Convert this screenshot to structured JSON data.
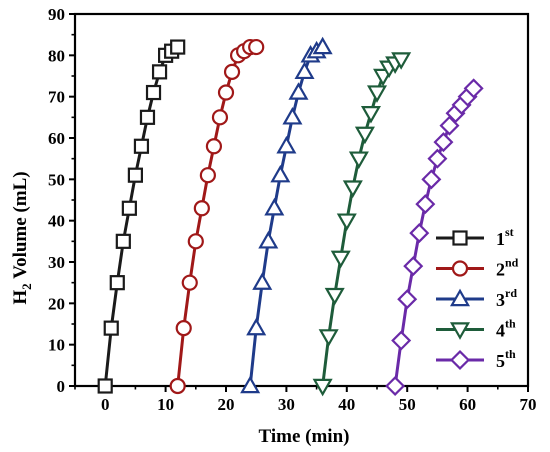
{
  "chart_data": {
    "type": "line",
    "xlabel": "Time (min)",
    "ylabel": {
      "base": "H",
      "subscript": "2",
      "rest": " Volume (mL)"
    },
    "xlim": [
      -5,
      70
    ],
    "ylim": [
      0,
      90
    ],
    "xticks": [
      0,
      10,
      20,
      30,
      40,
      50,
      60,
      70
    ],
    "yticks": [
      0,
      10,
      20,
      30,
      40,
      50,
      60,
      70,
      80,
      90
    ],
    "grid": false,
    "legend_position": "right",
    "series": [
      {
        "name": "1st",
        "label_main": "1",
        "label_sup": "st",
        "marker": "square",
        "color": "#1a1a1a",
        "x": [
          0,
          1,
          2,
          3,
          4,
          5,
          6,
          7,
          8,
          9,
          10,
          11,
          12
        ],
        "y": [
          0,
          14,
          25,
          35,
          43,
          51,
          58,
          65,
          71,
          76,
          80,
          81,
          82
        ]
      },
      {
        "name": "2nd",
        "label_main": "2",
        "label_sup": "nd",
        "marker": "circle",
        "color": "#a01818",
        "x": [
          12,
          13,
          14,
          15,
          16,
          17,
          18,
          19,
          20,
          21,
          22,
          23,
          24,
          25
        ],
        "y": [
          0,
          14,
          25,
          35,
          43,
          51,
          58,
          65,
          71,
          76,
          80,
          81,
          82,
          82
        ]
      },
      {
        "name": "3rd",
        "label_main": "3",
        "label_sup": "rd",
        "marker": "triangle-up",
        "color": "#1f3b8a",
        "x": [
          24,
          25,
          26,
          27,
          28,
          29,
          30,
          31,
          32,
          33,
          34,
          35,
          36
        ],
        "y": [
          0,
          14,
          25,
          35,
          43,
          51,
          58,
          65,
          71,
          76,
          80,
          81,
          82
        ]
      },
      {
        "name": "4th",
        "label_main": "4",
        "label_sup": "th",
        "marker": "triangle-down",
        "color": "#1e5c3a",
        "x": [
          36,
          37,
          38,
          39,
          40,
          41,
          42,
          43,
          44,
          45,
          46,
          47,
          48,
          49
        ],
        "y": [
          0,
          12,
          22,
          31,
          40,
          48,
          55,
          61,
          66,
          71,
          75,
          77,
          78,
          79
        ]
      },
      {
        "name": "5th",
        "label_main": "5",
        "label_sup": "th",
        "marker": "diamond",
        "color": "#6a2aa8",
        "x": [
          48,
          49,
          50,
          51,
          52,
          53,
          54,
          55,
          56,
          57,
          58,
          59,
          60,
          61
        ],
        "y": [
          0,
          11,
          21,
          29,
          37,
          44,
          50,
          55,
          59,
          63,
          66,
          68,
          70,
          72
        ]
      }
    ]
  }
}
